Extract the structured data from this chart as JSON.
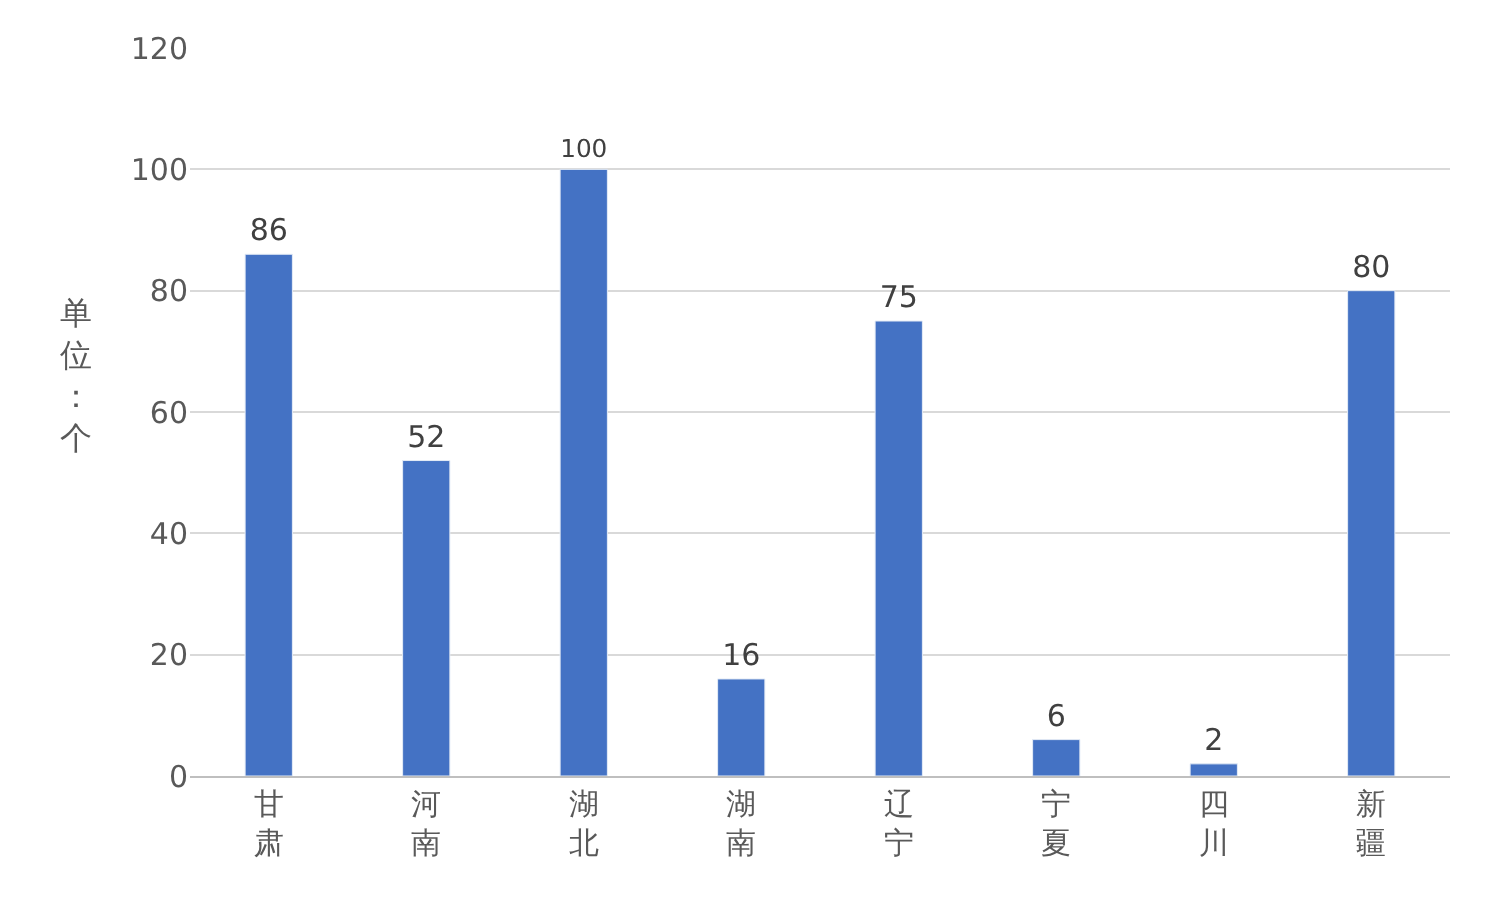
{
  "chart_data": {
    "type": "bar",
    "ylabel": "单位：个",
    "categories": [
      "甘肃",
      "河南",
      "湖北",
      "湖南",
      "辽宁",
      "宁夏",
      "四川",
      "新疆"
    ],
    "values": [
      86,
      52,
      100,
      16,
      75,
      6,
      2,
      80
    ],
    "color": "#4472c4",
    "ylim": [
      0,
      120
    ],
    "yticks": [
      0,
      20,
      40,
      60,
      80,
      100,
      120
    ],
    "grid": "y",
    "data_labels": true
  }
}
